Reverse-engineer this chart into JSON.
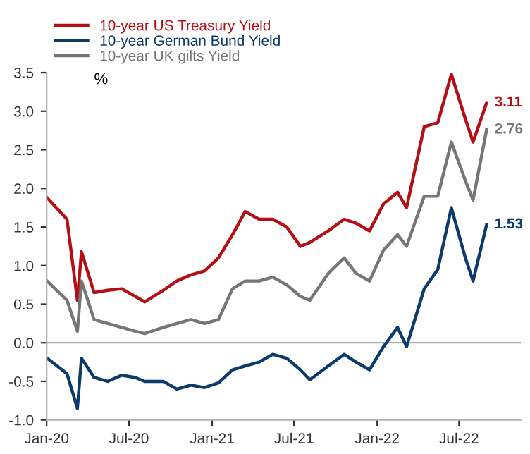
{
  "chart_data": {
    "type": "line",
    "ylabel": "%",
    "x": [
      "2020-01-02",
      "2020-02-15",
      "2020-03-09",
      "2020-03-18",
      "2020-04-15",
      "2020-05-15",
      "2020-06-15",
      "2020-07-15",
      "2020-08-05",
      "2020-09-15",
      "2020-10-15",
      "2020-11-15",
      "2020-12-15",
      "2021-01-15",
      "2021-02-15",
      "2021-03-15",
      "2021-04-15",
      "2021-05-15",
      "2021-06-15",
      "2021-07-15",
      "2021-08-05",
      "2021-09-15",
      "2021-10-20",
      "2021-11-15",
      "2021-12-15",
      "2022-01-15",
      "2022-02-15",
      "2022-03-07",
      "2022-04-15",
      "2022-05-15",
      "2022-06-14",
      "2022-07-15",
      "2022-08-01",
      "2022-08-31"
    ],
    "series": [
      {
        "name": "10-year US Treasury Yield",
        "color": "#b40f14",
        "values": [
          1.88,
          1.6,
          0.55,
          1.18,
          0.65,
          0.68,
          0.7,
          0.6,
          0.53,
          0.68,
          0.8,
          0.88,
          0.93,
          1.1,
          1.4,
          1.7,
          1.6,
          1.6,
          1.5,
          1.25,
          1.3,
          1.45,
          1.6,
          1.55,
          1.45,
          1.8,
          1.95,
          1.75,
          2.8,
          2.85,
          3.48,
          2.9,
          2.6,
          3.11
        ]
      },
      {
        "name": "10-year German Bund Yield",
        "color": "#0c3a6b",
        "values": [
          -0.2,
          -0.4,
          -0.85,
          -0.2,
          -0.45,
          -0.5,
          -0.42,
          -0.45,
          -0.5,
          -0.5,
          -0.6,
          -0.55,
          -0.58,
          -0.52,
          -0.35,
          -0.3,
          -0.25,
          -0.15,
          -0.2,
          -0.35,
          -0.48,
          -0.3,
          -0.15,
          -0.25,
          -0.35,
          -0.05,
          0.2,
          -0.05,
          0.7,
          0.95,
          1.75,
          1.1,
          0.8,
          1.53
        ]
      },
      {
        "name": "10-year UK gilts Yield",
        "color": "#767676",
        "values": [
          0.8,
          0.55,
          0.15,
          0.8,
          0.3,
          0.25,
          0.2,
          0.15,
          0.12,
          0.2,
          0.25,
          0.3,
          0.25,
          0.3,
          0.7,
          0.8,
          0.8,
          0.85,
          0.75,
          0.6,
          0.55,
          0.9,
          1.1,
          0.9,
          0.8,
          1.2,
          1.4,
          1.25,
          1.9,
          1.9,
          2.6,
          2.1,
          1.85,
          2.76
        ]
      }
    ],
    "annotations": [
      {
        "text": "3.11",
        "x": "2022-08-31",
        "y": 3.11
      },
      {
        "text": "2.76",
        "x": "2022-08-31",
        "y": 2.76
      },
      {
        "text": "1.53",
        "x": "2022-08-31",
        "y": 1.53
      }
    ],
    "xlim": [
      "2020-01-01",
      "2022-11-15"
    ],
    "xticks": [
      {
        "value": "2020-01-01",
        "label": "Jan-20"
      },
      {
        "value": "2020-07-01",
        "label": "Jul-20"
      },
      {
        "value": "2021-01-01",
        "label": "Jan-21"
      },
      {
        "value": "2021-07-01",
        "label": "Jul-21"
      },
      {
        "value": "2022-01-01",
        "label": "Jan-22"
      },
      {
        "value": "2022-07-01",
        "label": "Jul-22"
      }
    ],
    "ylim": [
      -1.0,
      3.5
    ],
    "yticks": [
      {
        "value": -1.0,
        "label": "-1.0"
      },
      {
        "value": -0.5,
        "label": "-0.5"
      },
      {
        "value": 0.0,
        "label": "0.0"
      },
      {
        "value": 0.5,
        "label": "0.5"
      },
      {
        "value": 1.0,
        "label": "1.0"
      },
      {
        "value": 1.5,
        "label": "1.5"
      },
      {
        "value": 2.0,
        "label": "2.0"
      },
      {
        "value": 2.5,
        "label": "2.5"
      },
      {
        "value": 3.0,
        "label": "3.0"
      },
      {
        "value": 3.5,
        "label": "3.5"
      }
    ],
    "ref_lines": [
      {
        "axis": "y",
        "value": 0,
        "color": "#b0b0b0"
      }
    ],
    "legend": "top left",
    "grid": false,
    "marker": "none",
    "line_style": "solid"
  }
}
